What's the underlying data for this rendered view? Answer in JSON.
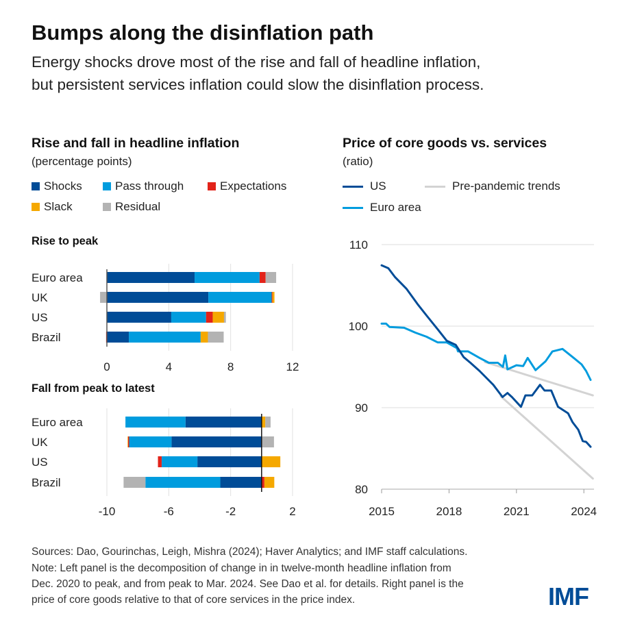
{
  "title": "Bumps along the disinflation path",
  "subtitle": [
    "Energy shocks drove most of the rise and fall of headline inflation,",
    "but persistent services inflation could slow the disinflation process."
  ],
  "colors": {
    "Shocks": "#004C97",
    "Pass through": "#009CDE",
    "Expectations": "#E2231A",
    "Slack": "#F5A800",
    "Residual": "#B3B3B3",
    "US": "#004C97",
    "Euro area": "#009CDE",
    "Pre-pandemic trends": "#D3D3D3"
  },
  "left_panel": {
    "title": "Rise and fall in headline inflation",
    "unit": "(percentage points)",
    "legend": [
      "Shocks",
      "Pass through",
      "Expectations",
      "Slack",
      "Residual"
    ]
  },
  "right_panel": {
    "title": "Price of core goods vs. services",
    "unit": "(ratio)",
    "legend": [
      "US",
      "Pre-pandemic trends",
      "Euro area"
    ]
  },
  "chart_data": [
    {
      "type": "bar",
      "orientation": "horizontal",
      "stacked": true,
      "title": "Rise to peak",
      "categories": [
        "Euro area",
        "UK",
        "US",
        "Brazil"
      ],
      "xlim": [
        0,
        12
      ],
      "xticks": [
        "0",
        "4",
        "8",
        "12"
      ],
      "series": [
        {
          "name": "Shocks",
          "values": [
            5.67,
            6.56,
            4.16,
            1.42
          ]
        },
        {
          "name": "Pass through",
          "values": [
            4.2,
            4.09,
            2.25,
            4.64
          ]
        },
        {
          "name": "Expectations",
          "values": [
            0.39,
            0.05,
            0.43,
            -0.05
          ]
        },
        {
          "name": "Slack",
          "values": [
            0,
            0.13,
            0.73,
            0.47
          ]
        },
        {
          "name": "Residual",
          "values": [
            0.68,
            -0.44,
            0.12,
            1.02
          ]
        }
      ]
    },
    {
      "type": "bar",
      "orientation": "horizontal",
      "stacked": true,
      "title": "Fall from peak to latest",
      "categories": [
        "Euro area",
        "UK",
        "US",
        "Brazil"
      ],
      "xlim": [
        -10,
        2
      ],
      "xticks": [
        "-10",
        "-6",
        "-2",
        "2"
      ],
      "series": [
        {
          "name": "Shocks",
          "values": [
            -4.92,
            -5.82,
            -4.15,
            -2.67
          ]
        },
        {
          "name": "Pass through",
          "values": [
            -3.88,
            -2.74,
            -2.31,
            -4.84
          ]
        },
        {
          "name": "Expectations",
          "values": [
            0,
            -0.07,
            -0.24,
            0.18
          ]
        },
        {
          "name": "Slack",
          "values": [
            0.24,
            -0.03,
            1.21,
            0.64
          ]
        },
        {
          "name": "Residual",
          "values": [
            0.34,
            0.8,
            0,
            -1.41
          ]
        }
      ]
    },
    {
      "type": "line",
      "title": "Price of core goods vs. services",
      "ylabel": "(ratio)",
      "xlim": [
        2015,
        2024.5
      ],
      "ylim": [
        80,
        110
      ],
      "xticks": [
        "2015",
        "2018",
        "2021",
        "2024"
      ],
      "yticks": [
        "80",
        "90",
        "100",
        "110"
      ],
      "grid": true,
      "series": [
        {
          "name": "US",
          "x": [
            2015.0,
            2015.3,
            2015.6,
            2016.1,
            2016.6,
            2017.0,
            2017.5,
            2017.9,
            2018.3,
            2018.65,
            2018.95,
            2019.36,
            2019.97,
            2020.38,
            2020.6,
            2020.8,
            2021.2,
            2021.4,
            2021.7,
            2022.05,
            2022.25,
            2022.55,
            2022.85,
            2023.3,
            2023.5,
            2023.75,
            2023.95,
            2024.1,
            2024.3
          ],
          "y": [
            107.45,
            107.1,
            106.0,
            104.6,
            102.7,
            101.3,
            99.6,
            98.2,
            97.7,
            96.2,
            95.5,
            94.5,
            92.8,
            91.3,
            91.8,
            91.3,
            90.1,
            91.5,
            91.5,
            92.8,
            92.1,
            92.1,
            90.1,
            89.3,
            88.2,
            87.3,
            85.9,
            85.8,
            85.2
          ]
        },
        {
          "name": "Euro area",
          "x": [
            2015.0,
            2015.2,
            2015.35,
            2016.0,
            2016.5,
            2017.0,
            2017.5,
            2017.9,
            2018.35,
            2018.4,
            2018.85,
            2019.36,
            2019.77,
            2020.17,
            2020.4,
            2020.5,
            2020.6,
            2021.0,
            2021.3,
            2021.5,
            2021.85,
            2022.3,
            2022.6,
            2023.05,
            2023.55,
            2023.9,
            2024.1,
            2024.3
          ],
          "y": [
            100.3,
            100.3,
            99.9,
            99.8,
            99.2,
            98.7,
            98.0,
            98.0,
            97.3,
            96.9,
            96.9,
            96.1,
            95.5,
            95.5,
            95.0,
            96.4,
            94.7,
            95.2,
            95.1,
            96.1,
            94.6,
            95.7,
            96.9,
            97.2,
            96.1,
            95.3,
            94.5,
            93.4
          ]
        },
        {
          "name": "Pre-pandemic trends (Euro area)",
          "x": [
            2019.6,
            2024.4
          ],
          "y": [
            95.6,
            91.5
          ]
        },
        {
          "name": "Pre-pandemic trends (US)",
          "x": [
            2020.3,
            2024.4
          ],
          "y": [
            91.4,
            81.3
          ]
        }
      ]
    }
  ],
  "footer": [
    "Sources: Dao, Gourinchas, Leigh, Mishra (2024); Haver Analytics; and IMF staff calculations.",
    "Note: Left panel is the decomposition of change in in twelve-month headline inflation from",
    "Dec. 2020 to peak, and from peak to Mar. 2024. See Dao et al. for details. Right panel is the",
    "price of core goods relative to that of core services in the price index."
  ],
  "logo": "IMF"
}
